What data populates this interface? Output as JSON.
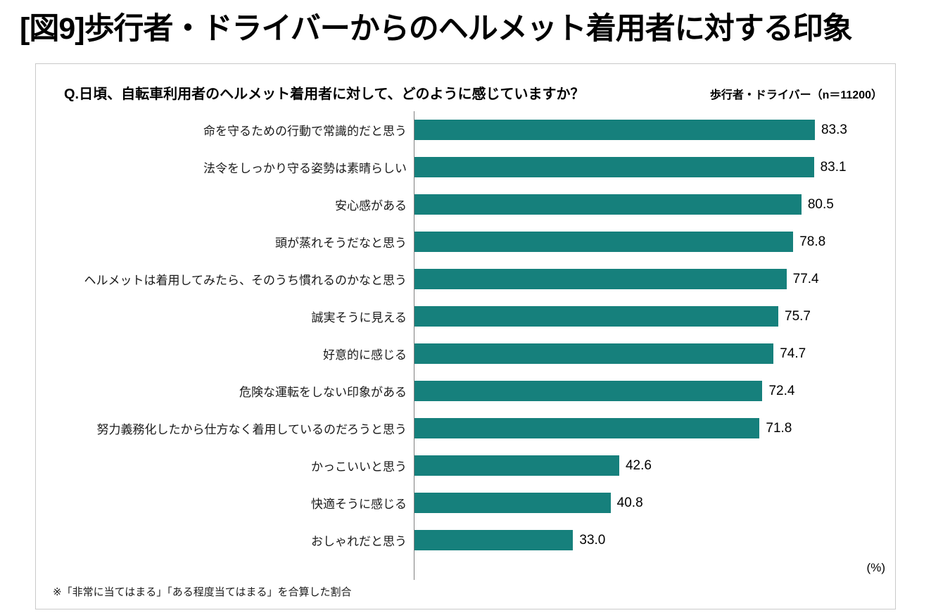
{
  "page": {
    "title": "[図9]歩行者・ドライバーからのヘルメット着用者に対する印象",
    "question": "Q.日頃、自転車利用者のヘルメット着用者に対して、どのように感じていますか？",
    "sample_label": "歩行者・ドライバー（n＝11200）",
    "unit_label": "(%)",
    "footnote": "※「非常に当てはまる」「ある程度当てはまる」を合算した割合"
  },
  "chart_data": {
    "type": "bar",
    "orientation": "horizontal",
    "title": "[図9]歩行者・ドライバーからのヘルメット着用者に対する印象",
    "subtitle": "Q.日頃、自転車利用者のヘルメット着用者に対して、どのように感じていますか？",
    "categories": [
      "命を守るための行動で常識的だと思う",
      "法令をしっかり守る姿勢は素晴らしい",
      "安心感がある",
      "頭が蒸れそうだなと思う",
      "ヘルメットは着用してみたら、そのうち慣れるのかなと思う",
      "誠実そうに見える",
      "好意的に感じる",
      "危険な運転をしない印象がある",
      "努力義務化したから仕方なく着用しているのだろうと思う",
      "かっこいいと思う",
      "快適そうに感じる",
      "おしゃれだと思う"
    ],
    "values": [
      83.3,
      83.1,
      80.5,
      78.8,
      77.4,
      75.7,
      74.7,
      72.4,
      71.8,
      42.6,
      40.8,
      33.0
    ],
    "xlabel": "(%)",
    "ylabel": "",
    "xlim": [
      0,
      100
    ],
    "grid": false,
    "legend": "none",
    "bar_color": "#16807c",
    "sample_size": 11200,
    "annotation": "※「非常に当てはまる」「ある程度当てはまる」を合算した割合"
  }
}
